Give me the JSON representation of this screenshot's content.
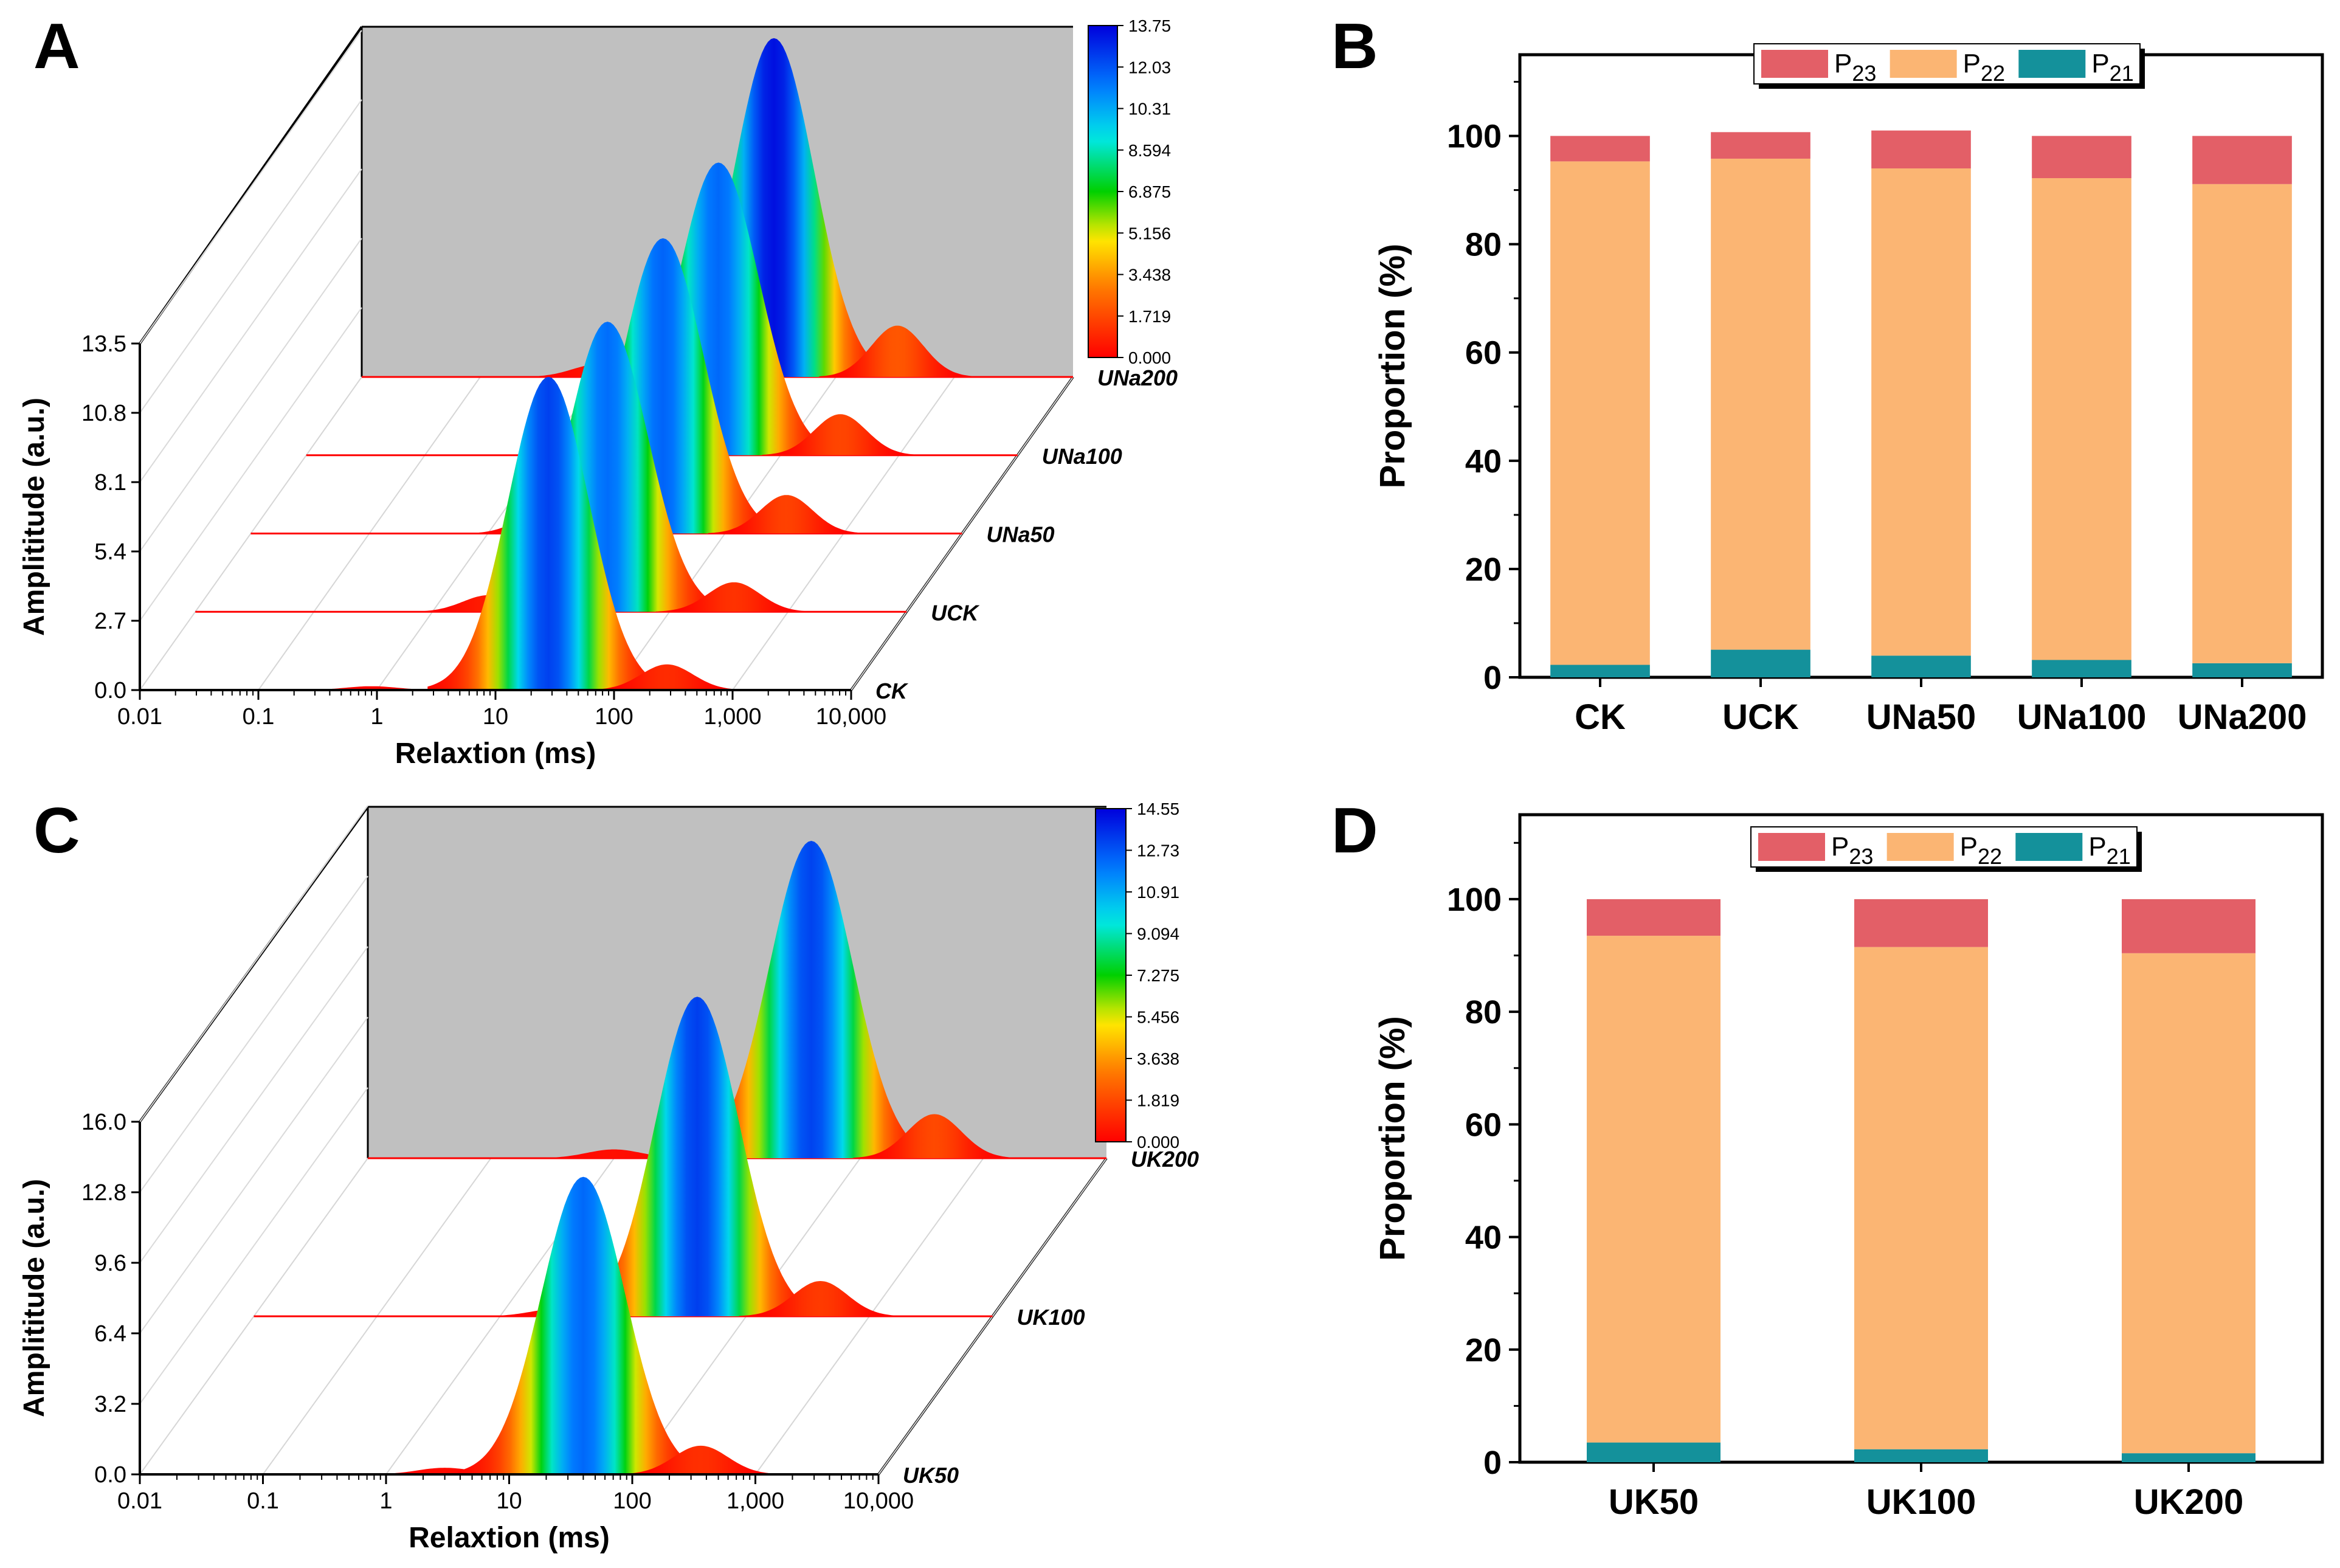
{
  "panels": {
    "A": {
      "letter": "A"
    },
    "B": {
      "letter": "B"
    },
    "C": {
      "letter": "C"
    },
    "D": {
      "letter": "D"
    }
  },
  "colors": {
    "p23": "#e35f67",
    "p22": "#fbb573",
    "p21": "#14919b",
    "backwall": "#c0c0c0",
    "baseline": "#ff0000"
  },
  "chart_data": [
    {
      "panel": "A",
      "type": "area",
      "subtype": "3d-waterfall",
      "xlabel": "Relaxtion (ms)",
      "ylabel": "Amplititude (a.u.)",
      "x_scale": "log",
      "x_ticks": [
        "0.01",
        "0.1",
        "1",
        "10",
        "100",
        "1,000",
        "10,000"
      ],
      "y_ticks": [
        "0.0",
        "2.7",
        "5.4",
        "8.1",
        "10.8",
        "13.5"
      ],
      "ylim": [
        0,
        13.5
      ],
      "colorbar": [
        "13.75",
        "12.03",
        "10.31",
        "8.594",
        "6.875",
        "5.156",
        "3.438",
        "1.719",
        "0.000"
      ],
      "series": [
        {
          "name": "CK",
          "peaks": [
            {
              "t2": 0.9,
              "amp": 0.15
            },
            {
              "t2": 28,
              "amp": 12.2
            },
            {
              "t2": 280,
              "amp": 1.0
            }
          ]
        },
        {
          "name": "UCK",
          "peaks": [
            {
              "t2": 3.0,
              "amp": 0.65
            },
            {
              "t2": 30,
              "amp": 11.3
            },
            {
              "t2": 350,
              "amp": 1.15
            }
          ]
        },
        {
          "name": "UNa50",
          "peaks": [
            {
              "t2": 3.0,
              "amp": 0.85
            },
            {
              "t2": 30,
              "amp": 11.5
            },
            {
              "t2": 330,
              "amp": 1.5
            }
          ]
        },
        {
          "name": "UNa100",
          "peaks": [
            {
              "t2": 2.5,
              "amp": 0.55
            },
            {
              "t2": 30,
              "amp": 11.4
            },
            {
              "t2": 320,
              "amp": 1.6
            }
          ]
        },
        {
          "name": "UNa200",
          "peaks": [
            {
              "t2": 1.0,
              "amp": 0.5
            },
            {
              "t2": 30,
              "amp": 13.2
            },
            {
              "t2": 330,
              "amp": 2.0
            }
          ]
        }
      ]
    },
    {
      "panel": "B",
      "type": "bar",
      "stacked": true,
      "ylabel": "Proportion (%)",
      "xlabel": "",
      "ylim": [
        0,
        115
      ],
      "y_ticks": [
        "0",
        "20",
        "40",
        "60",
        "80",
        "100"
      ],
      "categories": [
        "CK",
        "UCK",
        "UNa50",
        "UNa100",
        "UNa200"
      ],
      "legend": [
        "P23",
        "P22",
        "P21"
      ],
      "legend_position": "top",
      "series": [
        {
          "name": "P21",
          "values": [
            2.3,
            5.1,
            4.0,
            3.2,
            2.6
          ]
        },
        {
          "name": "P22",
          "values": [
            93.0,
            90.7,
            90.0,
            89.0,
            88.5
          ]
        },
        {
          "name": "P23",
          "values": [
            4.7,
            4.9,
            7.0,
            7.8,
            8.9
          ]
        }
      ]
    },
    {
      "panel": "C",
      "type": "area",
      "subtype": "3d-waterfall",
      "xlabel": "Relaxtion (ms)",
      "ylabel": "Amplititude (a.u.)",
      "x_scale": "log",
      "x_ticks": [
        "0.01",
        "0.1",
        "1",
        "10",
        "100",
        "1,000",
        "10,000"
      ],
      "y_ticks": [
        "0.0",
        "3.2",
        "6.4",
        "9.6",
        "12.8",
        "16.0"
      ],
      "ylim": [
        0,
        16
      ],
      "colorbar": [
        "14.55",
        "12.73",
        "10.91",
        "9.094",
        "7.275",
        "5.456",
        "3.638",
        "1.819",
        "0.000"
      ],
      "series": [
        {
          "name": "UK50",
          "peaks": [
            {
              "t2": 3.0,
              "amp": 0.3
            },
            {
              "t2": 40,
              "amp": 13.5
            },
            {
              "t2": 360,
              "amp": 1.3
            }
          ]
        },
        {
          "name": "UK100",
          "peaks": [
            {
              "t2": 3.0,
              "amp": 0.35
            },
            {
              "t2": 40,
              "amp": 14.5
            },
            {
              "t2": 400,
              "amp": 1.6
            }
          ]
        },
        {
          "name": "UK200",
          "peaks": [
            {
              "t2": 1.0,
              "amp": 0.4
            },
            {
              "t2": 40,
              "amp": 14.4
            },
            {
              "t2": 400,
              "amp": 2.0
            }
          ]
        }
      ]
    },
    {
      "panel": "D",
      "type": "bar",
      "stacked": true,
      "ylabel": "Proportion (%)",
      "xlabel": "",
      "ylim": [
        0,
        115
      ],
      "y_ticks": [
        "0",
        "20",
        "40",
        "60",
        "80",
        "100"
      ],
      "categories": [
        "UK50",
        "UK100",
        "UK200"
      ],
      "legend": [
        "P23",
        "P22",
        "P21"
      ],
      "legend_position": "top",
      "series": [
        {
          "name": "P21",
          "values": [
            3.5,
            2.3,
            1.6
          ]
        },
        {
          "name": "P22",
          "values": [
            90.0,
            89.2,
            88.8
          ]
        },
        {
          "name": "P23",
          "values": [
            6.5,
            8.5,
            9.6
          ]
        }
      ]
    }
  ]
}
